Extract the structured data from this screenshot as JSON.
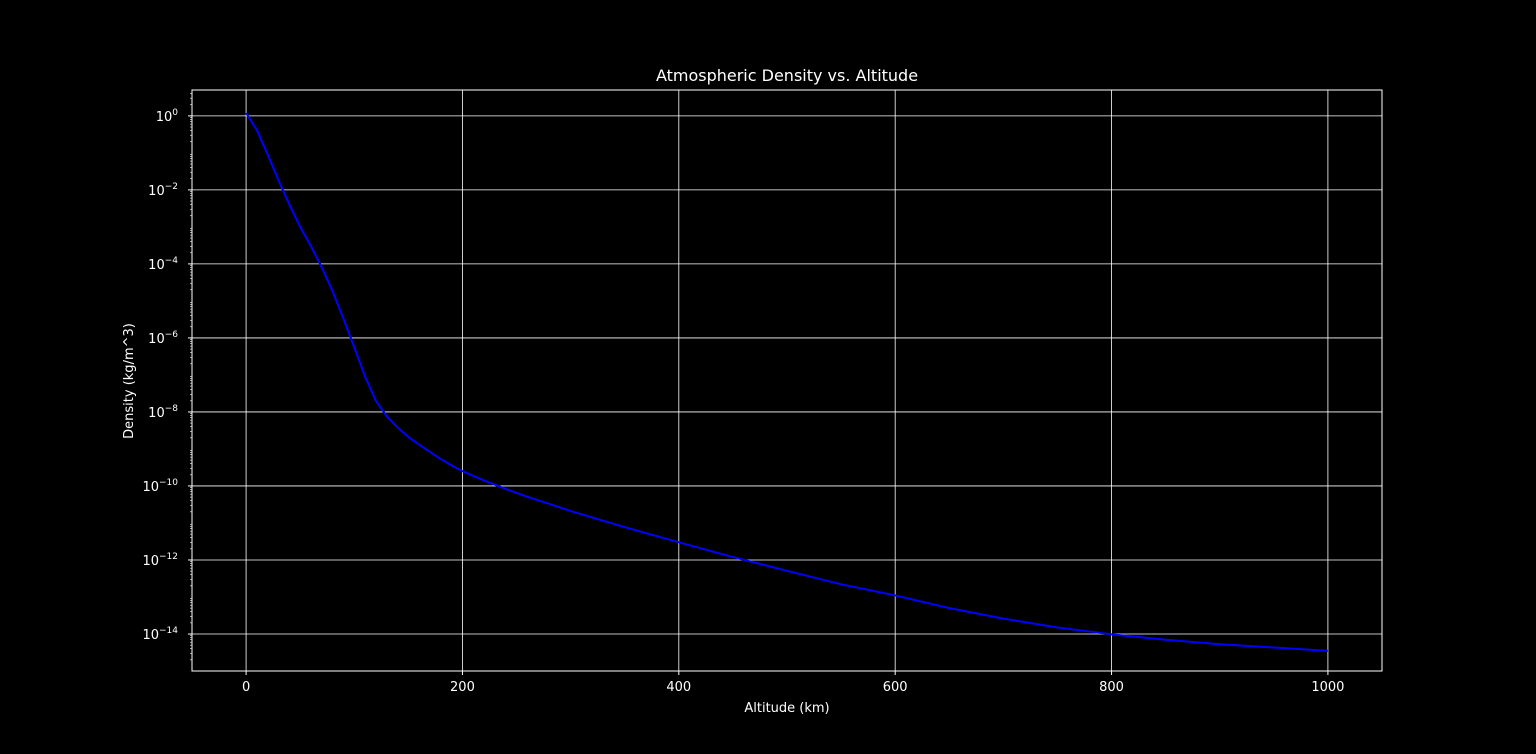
{
  "chart_data": {
    "type": "line",
    "title": "Atmospheric Density vs. Altitude",
    "xlabel": "Altitude (km)",
    "ylabel": "Density (kg/m^3)",
    "xlim": [
      -50,
      1050
    ],
    "ylim": [
      1e-15,
      5
    ],
    "yscale": "log",
    "grid": true,
    "x_ticks": [
      0,
      200,
      400,
      600,
      800,
      1000
    ],
    "x_tick_labels": [
      "0",
      "200",
      "400",
      "600",
      "800",
      "1000"
    ],
    "y_tick_exponents": [
      0,
      -2,
      -4,
      -6,
      -8,
      -10,
      -12,
      -14
    ],
    "y_tick_base": "10",
    "colors": {
      "background": "#000000",
      "series": "#0000ff",
      "axes": "#ffffff",
      "grid": "#ffffff",
      "text": "#ffffff"
    },
    "series": [
      {
        "x": [
          0,
          10,
          20,
          30,
          40,
          50,
          60,
          70,
          80,
          90,
          100,
          110,
          120,
          130,
          140,
          150,
          160,
          170,
          180,
          190,
          200,
          220,
          240,
          260,
          280,
          300,
          350,
          400,
          450,
          500,
          550,
          600,
          650,
          700,
          750,
          800,
          850,
          900,
          950,
          1000
        ],
        "y": [
          1.2,
          0.41,
          0.09,
          0.018,
          0.004,
          0.001,
          0.0003,
          8e-05,
          1.8e-05,
          3.3e-06,
          5.6e-07,
          9e-08,
          2e-08,
          7.6e-09,
          3.8e-09,
          2.1e-09,
          1.3e-09,
          8.3e-10,
          5.3e-10,
          3.6e-10,
          2.5e-10,
          1.4e-10,
          8.3e-11,
          5.1e-11,
          3.3e-11,
          2.1e-11,
          7.7e-12,
          3e-12,
          1.2e-12,
          5.1e-13,
          2.2e-13,
          1.1e-13,
          5e-14,
          2.6e-14,
          1.5e-14,
          9.8e-15,
          7e-15,
          5.3e-15,
          4.3e-15,
          3.5e-15
        ]
      }
    ]
  }
}
